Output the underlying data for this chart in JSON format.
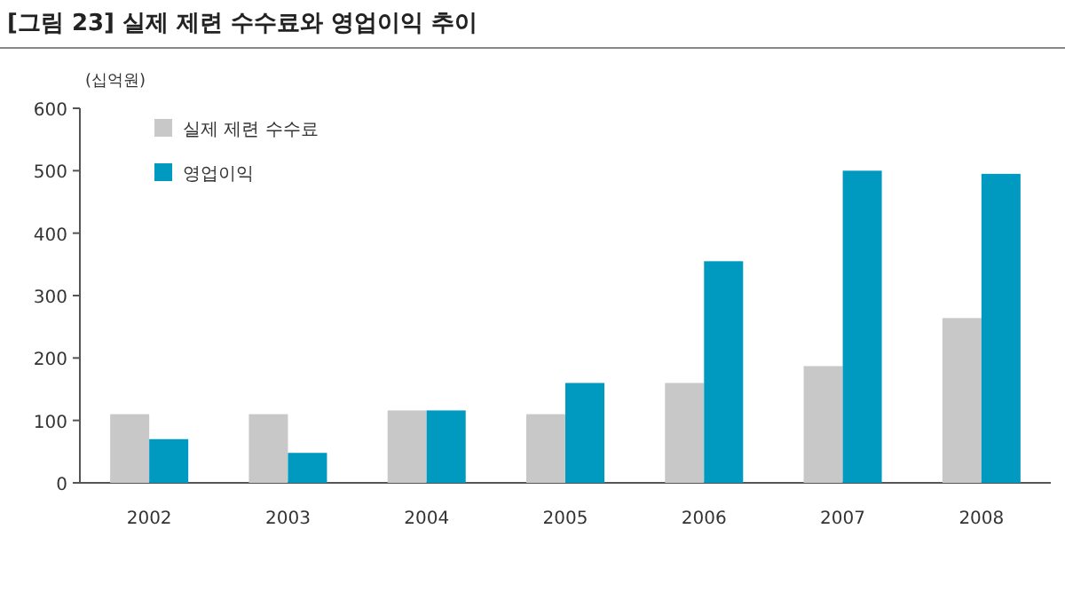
{
  "chart_data": {
    "type": "bar",
    "title": "[그림 23] 실제 제련 수수료와 영업이익 추이",
    "ylabel": "(십억원)",
    "categories": [
      "2002",
      "2003",
      "2004",
      "2005",
      "2006",
      "2007",
      "2008"
    ],
    "series": [
      {
        "name": "실제 제련 수수료",
        "color": "#c8c8c8",
        "values": [
          110,
          110,
          116,
          110,
          160,
          187,
          264
        ]
      },
      {
        "name": "영업이익",
        "color": "#0099c0",
        "values": [
          70,
          48,
          116,
          160,
          355,
          500,
          495
        ]
      }
    ],
    "ylim": [
      0,
      600
    ],
    "yticks": [
      0,
      100,
      200,
      300,
      400,
      500,
      600
    ],
    "legend": "top left",
    "grid": false
  }
}
